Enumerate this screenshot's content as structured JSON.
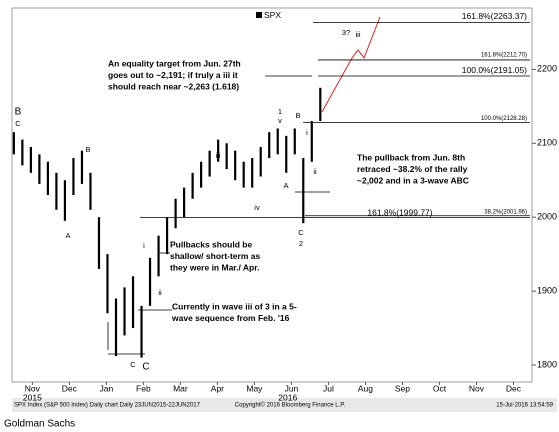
{
  "chart_data": {
    "type": "ohlc",
    "legend": true,
    "series": [
      {
        "name": "SPX",
        "color": "#000000",
        "x": [
          1.0,
          1.23,
          1.46,
          1.69,
          1.92,
          2.15,
          2.38,
          2.61,
          2.84,
          3.07,
          3.3,
          3.53,
          3.76,
          3.99,
          4.22,
          4.45,
          4.68,
          4.91,
          5.14,
          5.37,
          5.6,
          5.83,
          6.06,
          6.29,
          6.52,
          6.75,
          6.98,
          7.21,
          7.44,
          7.67,
          7.9,
          8.13,
          8.36,
          8.59,
          8.82,
          9.05,
          9.28
        ],
        "low": [
          2085,
          2070,
          2060,
          2045,
          2030,
          2010,
          1995,
          2030,
          2045,
          2010,
          1930,
          1870,
          1812,
          1840,
          1850,
          1810,
          1880,
          1920,
          1950,
          1985,
          2000,
          2025,
          2040,
          2055,
          2075,
          2065,
          2050,
          2040,
          2040,
          2055,
          2080,
          2085,
          2060,
          2085,
          1992,
          2075,
          2130
        ],
        "high": [
          2115,
          2105,
          2095,
          2085,
          2075,
          2060,
          2050,
          2080,
          2090,
          2060,
          2000,
          1950,
          1890,
          1905,
          1920,
          1880,
          1945,
          1975,
          2000,
          2025,
          2040,
          2060,
          2075,
          2090,
          2105,
          2100,
          2090,
          2075,
          2080,
          2095,
          2115,
          2120,
          2110,
          2120,
          2080,
          2130,
          2175
        ]
      }
    ],
    "xlim": [
      0.95,
      15.0
    ],
    "xticks": [
      {
        "value": 1.5,
        "label": "Nov"
      },
      {
        "value": 2.5,
        "label": "Dec"
      },
      {
        "value": 3.5,
        "label": "Jan"
      },
      {
        "value": 4.5,
        "label": "Feb"
      },
      {
        "value": 5.5,
        "label": "Mar"
      },
      {
        "value": 6.5,
        "label": "Apr"
      },
      {
        "value": 7.5,
        "label": "May"
      },
      {
        "value": 8.5,
        "label": "Jun"
      },
      {
        "value": 9.5,
        "label": "Jul"
      },
      {
        "value": 10.5,
        "label": "Aug"
      },
      {
        "value": 11.5,
        "label": "Sep"
      },
      {
        "value": 12.5,
        "label": "Oct"
      },
      {
        "value": 13.5,
        "label": "Nov"
      },
      {
        "value": 14.5,
        "label": "Dec"
      }
    ],
    "years": [
      {
        "value": 1.5,
        "label": "2015"
      },
      {
        "value": 8.4,
        "label": "2016"
      }
    ],
    "ylim": [
      1777,
      2283
    ],
    "yticks": [
      1800,
      1900,
      2000,
      2100,
      2200
    ],
    "levels": [
      {
        "label": "161.8%(2263.37)",
        "value": 2263.37
      },
      {
        "label": "161.8%(2212.70)",
        "value": 2212.7
      },
      {
        "label": "100.0%(2191.05)",
        "value": 2191.05
      },
      {
        "label": "100.0%(2128.28)",
        "value": 2128.28
      },
      {
        "label": "38.2%(2001.96)",
        "value": 2001.96
      },
      {
        "label": "161.8%(1999.77)",
        "value": 1999.77
      }
    ],
    "wave_labels": [
      {
        "text": "B",
        "color": "#000000"
      },
      {
        "text": "C",
        "color": "#e02020"
      },
      {
        "text": "B",
        "color": "#e02020"
      },
      {
        "text": "A",
        "color": "#e02020"
      },
      {
        "text": "C",
        "color": "#e02020"
      },
      {
        "text": "C",
        "color": "#000000"
      },
      {
        "text": "i",
        "color": "#e02020"
      },
      {
        "text": "ii",
        "color": "#e02020"
      },
      {
        "text": "iii",
        "color": "#e02020"
      },
      {
        "text": "iv",
        "color": "#e02020"
      },
      {
        "text": "1",
        "color": "#e02020"
      },
      {
        "text": "v",
        "color": "#e02020"
      },
      {
        "text": "A",
        "color": "#e02020"
      },
      {
        "text": "B",
        "color": "#e02020"
      },
      {
        "text": "i",
        "color": "#e02020"
      },
      {
        "text": "ii",
        "color": "#e02020"
      },
      {
        "text": "C",
        "color": "#e02020"
      },
      {
        "text": "2",
        "color": "#e02020"
      },
      {
        "text": "3?",
        "color": "#e02020"
      },
      {
        "text": "iii",
        "color": "#e02020"
      }
    ],
    "notes": [
      [
        "An equality target from Jun. 27th",
        "goes out to ~2,191; if truly a iii it",
        "should reach near ~2,263 (1.618)"
      ],
      [
        "The pullback from Jun. 8th",
        "retraced ~38.2% of the rally",
        "~2,002 and in a 3-wave ABC"
      ],
      [
        "Pullbacks should be",
        "shallow/ short-term as",
        "they were in Mar./ Apr."
      ],
      [
        "Currently in wave iii of 3 in a 5-",
        "wave sequence from Feb. '16"
      ]
    ],
    "footer": {
      "left": "SPX Index (S&P 500 Index)  Daily chart  Daily 23JUN2015-22JUN2017",
      "center": "Copyright© 2016 Bloomberg Finance L.P.",
      "right": "15-Jul-2016 13:54:59"
    },
    "source": "Goldman Sachs"
  }
}
